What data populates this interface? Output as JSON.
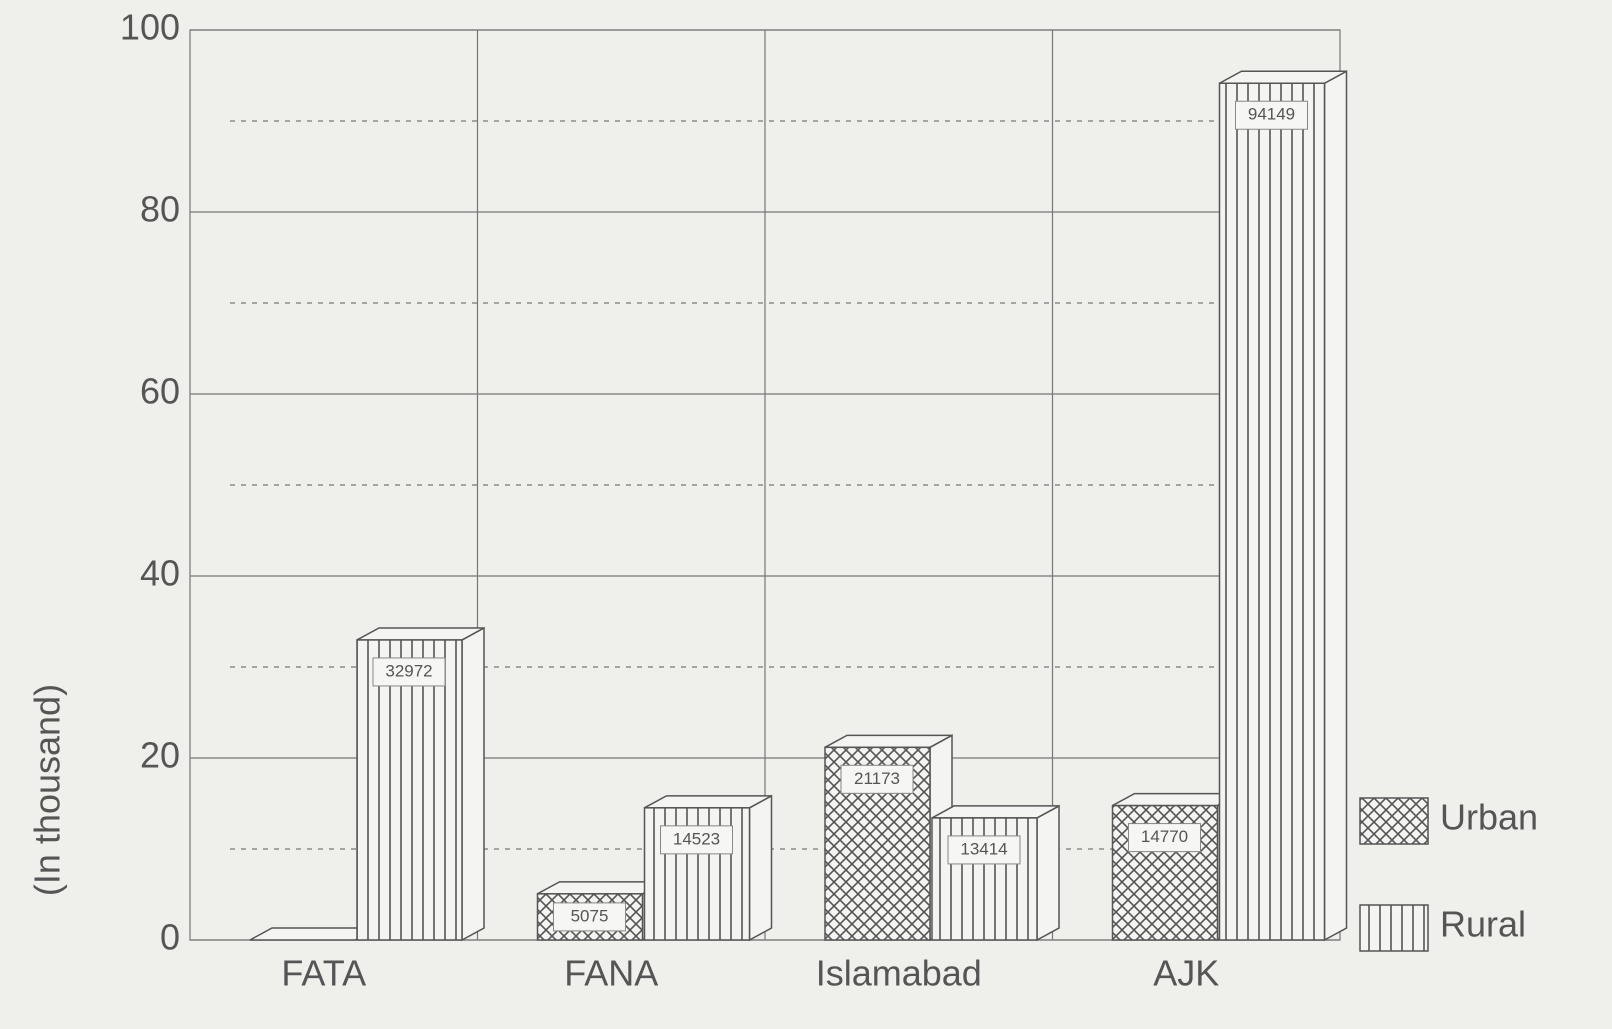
{
  "chart_data": {
    "type": "bar3d",
    "y_label": "(In thousand)",
    "categories": [
      "FATA",
      "FANA",
      "Islamabad",
      "AJK"
    ],
    "series": [
      {
        "name": "Urban",
        "color": "#555555",
        "pattern": "crosshatch",
        "values": [
          0,
          5.075,
          21.173,
          14.77
        ],
        "value_labels": [
          null,
          "5075",
          "21173",
          "14770"
        ]
      },
      {
        "name": "Rural",
        "color": "#555555",
        "pattern": "vertical",
        "values": [
          32.972,
          14.523,
          13.414,
          94.149
        ],
        "value_labels": [
          "32972",
          "14523",
          "13414",
          "94149"
        ]
      }
    ],
    "ylim": [
      0,
      100
    ],
    "yticks": [
      0,
      20,
      40,
      60,
      80,
      100
    ],
    "minor_yticks": [
      10,
      30,
      50,
      70,
      90
    ],
    "grid": true,
    "legend": "right"
  }
}
